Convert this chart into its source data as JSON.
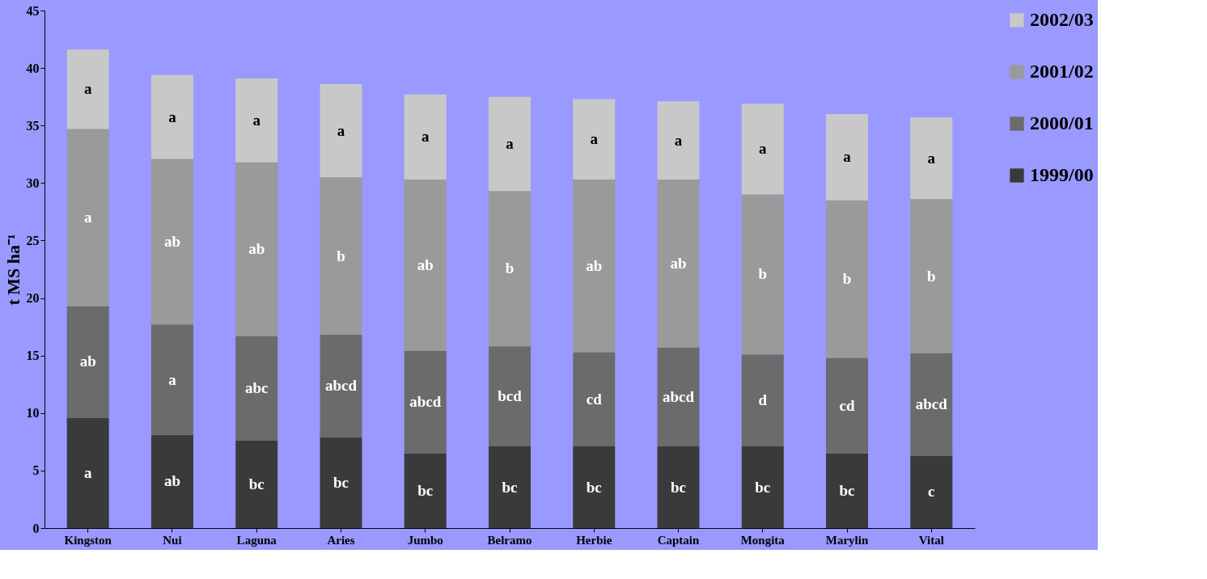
{
  "chart_data": {
    "type": "bar",
    "stacked": true,
    "ylabel": "t MS ha⁻¹",
    "categories": [
      "Kingston",
      "Nui",
      "Laguna",
      "Aries",
      "Jumbo",
      "Belramo",
      "Herbie",
      "Captain",
      "Mongita",
      "Marylin",
      "Vital"
    ],
    "series": [
      {
        "name": "1999/00",
        "color": "#3a3a3a",
        "values": [
          9.6,
          8.1,
          7.6,
          7.9,
          6.5,
          7.1,
          7.1,
          7.1,
          7.1,
          6.5,
          6.3
        ],
        "value_labels": [
          "a",
          "ab",
          "bc",
          "bc",
          "bc",
          "bc",
          "bc",
          "bc",
          "bc",
          "bc",
          "c"
        ]
      },
      {
        "name": "2000/01",
        "color": "#6b6b6b",
        "values": [
          9.7,
          9.6,
          9.1,
          8.9,
          8.9,
          8.7,
          8.2,
          8.6,
          8.0,
          8.3,
          8.9
        ],
        "value_labels": [
          "ab",
          "a",
          "abc",
          "abcd",
          "abcd",
          "bcd",
          "cd",
          "abcd",
          "d",
          "cd",
          "abcd"
        ]
      },
      {
        "name": "2001/02",
        "color": "#9a9a9a",
        "values": [
          15.4,
          14.4,
          15.1,
          13.7,
          14.9,
          13.5,
          15.0,
          14.6,
          13.9,
          13.7,
          13.4
        ],
        "value_labels": [
          "a",
          "ab",
          "ab",
          "b",
          "ab",
          "b",
          "ab",
          "ab",
          "b",
          "b",
          "b"
        ]
      },
      {
        "name": "2002/03",
        "color": "#c8c8c8",
        "values": [
          6.9,
          7.3,
          7.3,
          8.1,
          7.4,
          8.2,
          7.0,
          6.8,
          7.9,
          7.5,
          7.1
        ],
        "value_labels": [
          "a",
          "a",
          "a",
          "a",
          "a",
          "a",
          "a",
          "a",
          "a",
          "a",
          "a"
        ]
      }
    ],
    "ylim": [
      0,
      45
    ],
    "yticks": [
      0,
      5,
      10,
      15,
      20,
      25,
      30,
      35,
      40,
      45
    ],
    "grid": false,
    "legend": "right"
  }
}
